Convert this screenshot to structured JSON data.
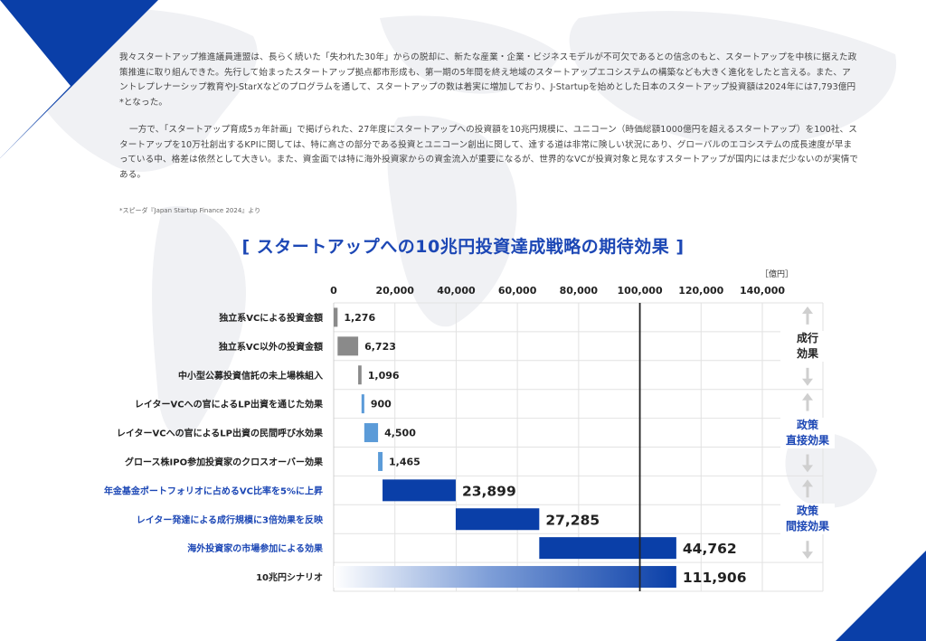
{
  "intro": {
    "paragraph1": "我々スタートアップ推進議員連盟は、長らく続いた「失われた30年」からの脱却に、新たな産業・企業・ビジネスモデルが不可欠であるとの信念のもと、スタートアップを中核に据えた政策推進に取り組んできた。先行して始まったスタートアップ拠点都市形成も、第一期の5年間を終え地域のスタートアップエコシステムの構築なども大きく進化をしたと言える。また、アントレプレナーシップ教育やJ-StarXなどのプログラムを通して、スタートアップの数は着実に増加しており、J-Startupを始めとした日本のスタートアップ投資額は2024年には7,793億円*となった。",
    "paragraph2": "一方で、「スタートアップ育成5ヵ年計画」で掲げられた、27年度にスタートアップへの投資額を10兆円規模に、ユニコーン（時価総額1000億円を超えるスタートアップ）を100社、スタートアップを10万社創出するKPIに関しては、特に高さの部分である投資とユニコーン創出に関して、達する道は非常に険しい状況にあり、グローバルのエコシステムの成長速度が早まっている中、格差は依然として大きい。また、資金面では特に海外投資家からの資金流入が重要になるが、世界的なVCが投資対象と見なすスタートアップが国内にはまだ少ないのが実情である。",
    "footnote": "*スピーダ『Japan Startup Finance 2024』より"
  },
  "colors": {
    "brand_blue": "#0a3fa8",
    "title_blue": "#1c47b5",
    "gray_bar": "#8a8a8a",
    "light_blue_bar": "#5b9bd8",
    "dark_text": "#222222"
  },
  "chart_data": {
    "type": "bar",
    "subtype": "waterfall-horizontal",
    "title": "[ スタートアップへの10兆円投資達成戦略の期待効果 ]",
    "unit_label": "［億円］",
    "xlim": [
      0,
      140000
    ],
    "x_ticks": [
      0,
      20000,
      40000,
      60000,
      80000,
      100000,
      120000,
      140000
    ],
    "x_tick_labels": [
      "0",
      "20,000",
      "40,000",
      "60,000",
      "80,000",
      "100,000",
      "120,000",
      "140,000"
    ],
    "target_line": 100000,
    "grid": true,
    "categories": [
      "独立系VCによる投資金額",
      "独立系VC以外の投資金額",
      "中小型公募投資信託の未上場株組入",
      "レイターVCへの官によるLP出資を通じた効果",
      "レイターVCへの官によるLP出資の民間呼び水効果",
      "グロース株IPO参加投資家のクロスオーバー効果",
      "年金基金ポートフォリオに占めるVC比率を5%に上昇",
      "レイター発達による成行規模に3倍効果を反映",
      "海外投資家の市場参加による効果",
      "10兆円シナリオ"
    ],
    "values": [
      1276,
      6723,
      1096,
      900,
      4500,
      1465,
      23899,
      27285,
      44762,
      111906
    ],
    "value_labels": [
      "1,276",
      "6,723",
      "1,096",
      "900",
      "4,500",
      "1,465",
      "23,899",
      "27,285",
      "44,762",
      "111,906"
    ],
    "groups": [
      {
        "label": "成行\n効果",
        "rows": [
          0,
          2
        ],
        "color": "#222222"
      },
      {
        "label": "政策\n直接効果",
        "rows": [
          3,
          5
        ],
        "color": "#1c47b5"
      },
      {
        "label": "政策\n間接効果",
        "rows": [
          6,
          8
        ],
        "color": "#1c47b5"
      }
    ]
  }
}
